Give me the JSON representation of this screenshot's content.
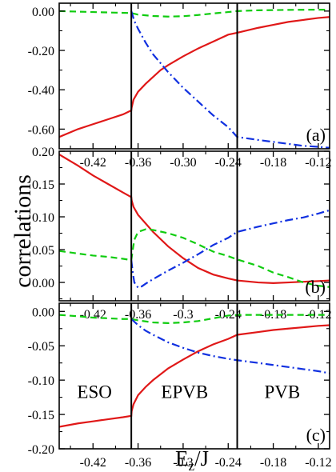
{
  "figure": {
    "ylabel": "correlations",
    "xlabel_main": "E",
    "xlabel_sub": "z",
    "xlabel_tail": "/J"
  },
  "chart_data": [
    {
      "type": "line",
      "panel_label": "(a)",
      "xlim": [
        -0.465,
        -0.105
      ],
      "ylim": [
        -0.7,
        0.04
      ],
      "x_ticks": [
        -0.42,
        -0.36,
        -0.3,
        -0.24,
        -0.18,
        -0.12
      ],
      "x_tick_labels": [
        "-0.42",
        "-0.36",
        "-0.30",
        "-0.24",
        "-0.18",
        "-0.12"
      ],
      "y_ticks": [
        0.0,
        -0.2,
        -0.4,
        -0.6
      ],
      "y_tick_labels": [
        "0.00",
        "-0.20",
        "-0.40",
        "-0.60"
      ],
      "vlines": [
        -0.369,
        -0.228
      ],
      "region_labels": [],
      "series": [
        {
          "color": "#e01818",
          "dash": "solid",
          "x": [
            -0.465,
            -0.44,
            -0.42,
            -0.4,
            -0.38,
            -0.369,
            -0.3685,
            -0.366,
            -0.36,
            -0.35,
            -0.34,
            -0.33,
            -0.32,
            -0.3,
            -0.28,
            -0.26,
            -0.24,
            -0.228,
            -0.2,
            -0.18,
            -0.16,
            -0.14,
            -0.12,
            -0.105
          ],
          "y": [
            -0.64,
            -0.6,
            -0.575,
            -0.55,
            -0.525,
            -0.505,
            -0.49,
            -0.45,
            -0.41,
            -0.37,
            -0.335,
            -0.3,
            -0.275,
            -0.23,
            -0.19,
            -0.155,
            -0.12,
            -0.11,
            -0.085,
            -0.07,
            -0.055,
            -0.045,
            -0.035,
            -0.03
          ]
        },
        {
          "color": "#10cc10",
          "dash": "8,5",
          "x": [
            -0.465,
            -0.42,
            -0.39,
            -0.369,
            -0.36,
            -0.34,
            -0.32,
            -0.3,
            -0.28,
            -0.26,
            -0.24,
            -0.228,
            -0.2,
            -0.16,
            -0.12,
            -0.105
          ],
          "y": [
            0.0,
            -0.005,
            -0.008,
            -0.01,
            -0.018,
            -0.025,
            -0.028,
            -0.026,
            -0.02,
            -0.012,
            -0.005,
            0.0,
            0.004,
            0.006,
            0.007,
            0.007
          ]
        },
        {
          "color": "#1030e0",
          "dash": "10,4,2,4",
          "x": [
            -0.369,
            -0.365,
            -0.36,
            -0.35,
            -0.34,
            -0.32,
            -0.3,
            -0.28,
            -0.26,
            -0.24,
            -0.228,
            -0.2,
            -0.18,
            -0.16,
            -0.14,
            -0.12,
            -0.105
          ],
          "y": [
            0.0,
            -0.05,
            -0.09,
            -0.16,
            -0.22,
            -0.31,
            -0.39,
            -0.46,
            -0.53,
            -0.59,
            -0.64,
            -0.655,
            -0.665,
            -0.675,
            -0.685,
            -0.69,
            -0.695
          ]
        }
      ]
    },
    {
      "type": "line",
      "panel_label": "(b)",
      "xlim": [
        -0.465,
        -0.105
      ],
      "ylim": [
        -0.028,
        0.2
      ],
      "x_ticks": [
        -0.42,
        -0.36,
        -0.3,
        -0.24,
        -0.18,
        -0.12
      ],
      "x_tick_labels": [
        "-0.42",
        "-0.36",
        "-0.3",
        "-0.24",
        "-0.18",
        "-0.12"
      ],
      "y_ticks": [
        0.0,
        0.05,
        0.1,
        0.15,
        0.2
      ],
      "y_tick_labels": [
        "0.00",
        "0.05",
        "0.10",
        "0.15",
        "0.20"
      ],
      "vlines": [
        -0.369,
        -0.228
      ],
      "region_labels": [],
      "series": [
        {
          "color": "#e01818",
          "dash": "solid",
          "x": [
            -0.465,
            -0.44,
            -0.42,
            -0.4,
            -0.38,
            -0.369,
            -0.3685,
            -0.366,
            -0.36,
            -0.35,
            -0.34,
            -0.32,
            -0.3,
            -0.28,
            -0.26,
            -0.24,
            -0.228,
            -0.2,
            -0.18,
            -0.16,
            -0.14,
            -0.12,
            -0.105
          ],
          "y": [
            0.195,
            0.178,
            0.163,
            0.15,
            0.137,
            0.13,
            0.125,
            0.115,
            0.103,
            0.09,
            0.077,
            0.055,
            0.037,
            0.022,
            0.012,
            0.006,
            0.003,
            0.0,
            -0.001,
            0.0,
            0.001,
            0.002,
            0.003
          ]
        },
        {
          "color": "#10cc10",
          "dash": "8,5",
          "x": [
            -0.465,
            -0.44,
            -0.42,
            -0.4,
            -0.38,
            -0.369,
            -0.367,
            -0.365,
            -0.36,
            -0.35,
            -0.34,
            -0.32,
            -0.3,
            -0.28,
            -0.26,
            -0.24,
            -0.228,
            -0.2,
            -0.18,
            -0.16,
            -0.14,
            -0.12,
            -0.105
          ],
          "y": [
            0.048,
            0.044,
            0.041,
            0.039,
            0.036,
            0.034,
            0.05,
            0.065,
            0.077,
            0.081,
            0.08,
            0.075,
            0.068,
            0.058,
            0.047,
            0.04,
            0.035,
            0.025,
            0.015,
            0.008,
            0.0,
            -0.005,
            -0.007
          ]
        },
        {
          "color": "#1030e0",
          "dash": "10,4,2,4",
          "x": [
            -0.369,
            -0.367,
            -0.365,
            -0.36,
            -0.355,
            -0.35,
            -0.34,
            -0.32,
            -0.3,
            -0.28,
            -0.26,
            -0.24,
            -0.228,
            -0.2,
            -0.18,
            -0.16,
            -0.14,
            -0.12,
            -0.105
          ],
          "y": [
            0.034,
            0.015,
            0.0,
            -0.008,
            -0.006,
            -0.002,
            0.005,
            0.018,
            0.03,
            0.043,
            0.057,
            0.068,
            0.077,
            0.085,
            0.09,
            0.095,
            0.099,
            0.105,
            0.11
          ]
        }
      ]
    },
    {
      "type": "line",
      "panel_label": "(c)",
      "xlim": [
        -0.465,
        -0.105
      ],
      "ylim": [
        -0.2,
        0.012
      ],
      "x_ticks": [
        -0.42,
        -0.36,
        -0.3,
        -0.24,
        -0.18,
        -0.12
      ],
      "x_tick_labels": [
        "-0.42",
        "-0.36",
        "-0.3",
        "-0.24",
        "-0.18",
        "-0.12"
      ],
      "y_ticks": [
        0.0,
        -0.05,
        -0.1,
        -0.15,
        -0.2
      ],
      "y_tick_labels": [
        "0.00",
        "-0.05",
        "-0.10",
        "-0.15",
        "-0.20"
      ],
      "vlines": [
        -0.369,
        -0.228
      ],
      "region_labels": [
        {
          "text": "ESO",
          "x": -0.418,
          "y": -0.117
        },
        {
          "text": "EPVB",
          "x": -0.298,
          "y": -0.117
        },
        {
          "text": "PVB",
          "x": -0.168,
          "y": -0.117
        }
      ],
      "series": [
        {
          "color": "#e01818",
          "dash": "solid",
          "x": [
            -0.465,
            -0.44,
            -0.42,
            -0.4,
            -0.38,
            -0.369,
            -0.3685,
            -0.366,
            -0.36,
            -0.35,
            -0.34,
            -0.32,
            -0.3,
            -0.28,
            -0.26,
            -0.24,
            -0.228,
            -0.2,
            -0.18,
            -0.16,
            -0.14,
            -0.12,
            -0.105
          ],
          "y": [
            -0.168,
            -0.163,
            -0.16,
            -0.157,
            -0.154,
            -0.152,
            -0.145,
            -0.135,
            -0.122,
            -0.11,
            -0.1,
            -0.083,
            -0.07,
            -0.058,
            -0.048,
            -0.04,
            -0.034,
            -0.03,
            -0.027,
            -0.025,
            -0.023,
            -0.021,
            -0.02
          ]
        },
        {
          "color": "#10cc10",
          "dash": "8,5",
          "x": [
            -0.465,
            -0.44,
            -0.42,
            -0.4,
            -0.38,
            -0.369,
            -0.36,
            -0.34,
            -0.32,
            -0.3,
            -0.28,
            -0.26,
            -0.24,
            -0.228,
            -0.2,
            -0.18,
            -0.16,
            -0.14,
            -0.12,
            -0.105
          ],
          "y": [
            -0.005,
            -0.007,
            -0.009,
            -0.01,
            -0.011,
            -0.011,
            -0.013,
            -0.016,
            -0.017,
            -0.016,
            -0.014,
            -0.01,
            -0.006,
            -0.005,
            -0.005,
            -0.005,
            -0.005,
            -0.005,
            -0.005,
            -0.005
          ]
        },
        {
          "color": "#1030e0",
          "dash": "10,4,2,4",
          "x": [
            -0.369,
            -0.36,
            -0.35,
            -0.34,
            -0.32,
            -0.3,
            -0.28,
            -0.26,
            -0.24,
            -0.228,
            -0.2,
            -0.18,
            -0.16,
            -0.14,
            -0.12,
            -0.105
          ],
          "y": [
            -0.011,
            -0.02,
            -0.028,
            -0.034,
            -0.045,
            -0.053,
            -0.06,
            -0.065,
            -0.069,
            -0.071,
            -0.075,
            -0.078,
            -0.081,
            -0.084,
            -0.087,
            -0.09
          ]
        }
      ]
    }
  ]
}
